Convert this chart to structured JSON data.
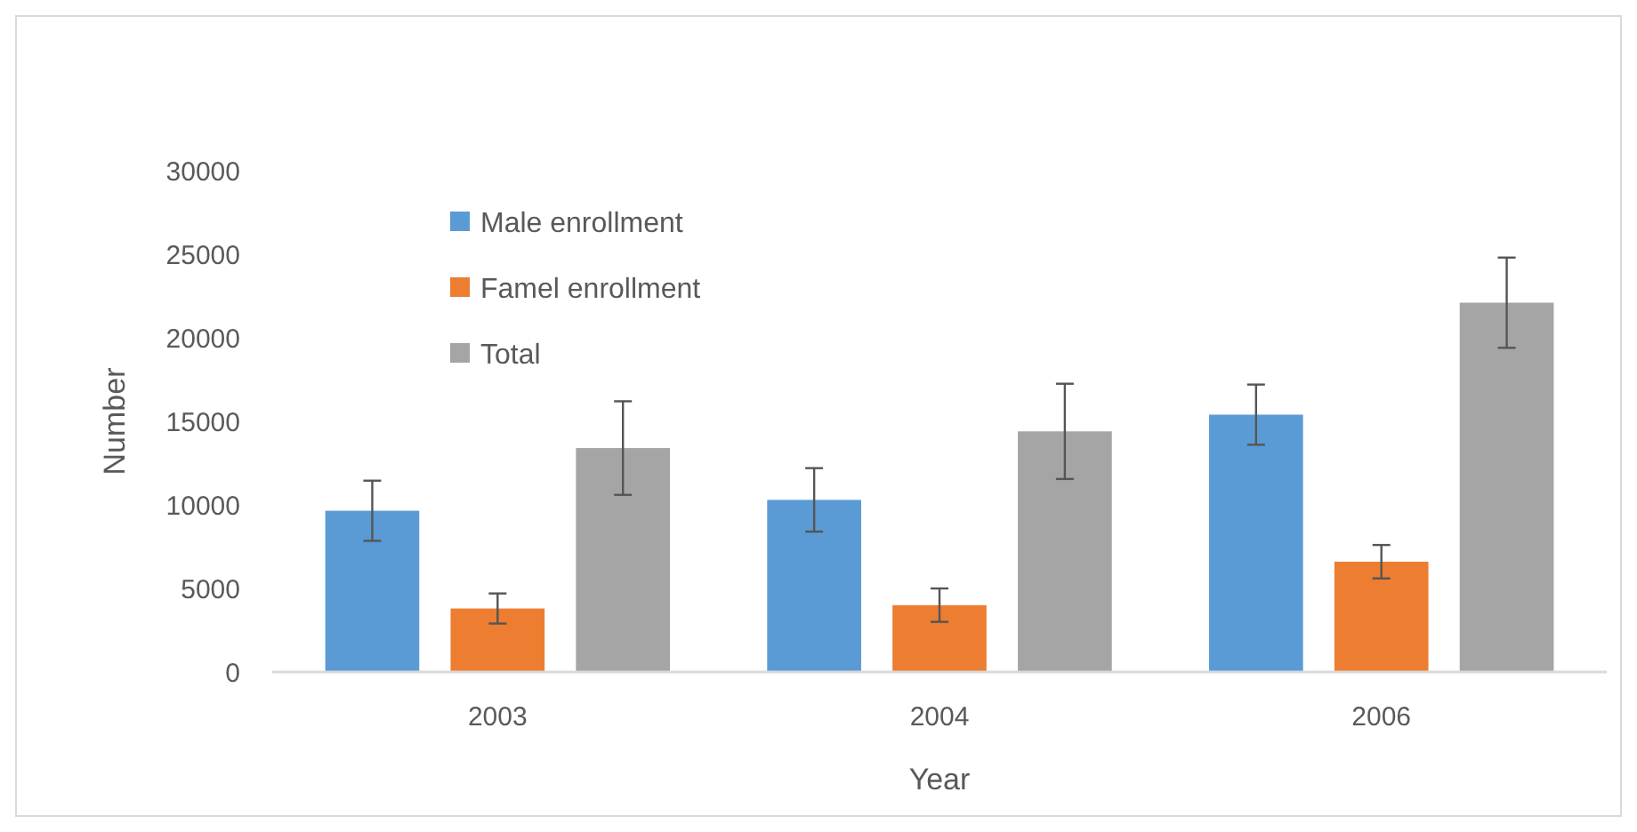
{
  "chart_data": {
    "type": "bar",
    "xlabel": "Year",
    "ylabel": "Number",
    "categories": [
      "2003",
      "2004",
      "2006"
    ],
    "series": [
      {
        "name": "Male enrollment",
        "color": "#5b9bd5",
        "values": [
          9650,
          10300,
          15400
        ],
        "errors": [
          1800,
          1900,
          1800
        ]
      },
      {
        "name": "Famel enrollment",
        "color": "#ed7d31",
        "values": [
          3800,
          4000,
          6600
        ],
        "errors": [
          900,
          1000,
          1000
        ]
      },
      {
        "name": "Total",
        "color": "#a5a5a5",
        "values": [
          13400,
          14400,
          22100
        ],
        "errors": [
          2800,
          2850,
          2700
        ]
      }
    ],
    "ylim": [
      0,
      30000
    ],
    "yticks": [
      0,
      5000,
      10000,
      15000,
      20000,
      25000,
      30000
    ],
    "grid": false,
    "legend": "top left"
  }
}
